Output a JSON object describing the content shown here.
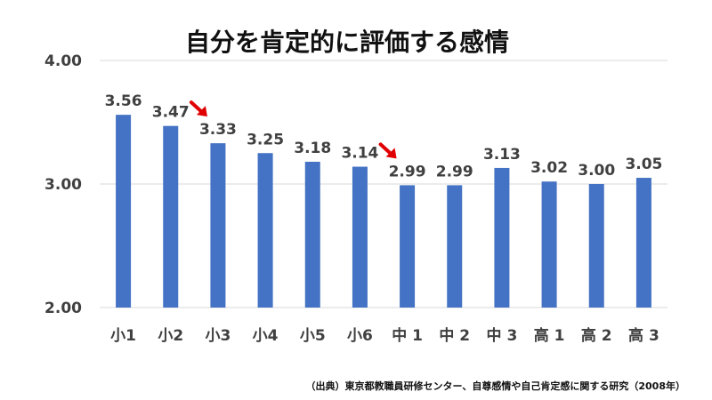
{
  "chart_data": {
    "type": "bar",
    "title": "自分を肯定的に評価する感情",
    "categories": [
      "小1",
      "小2",
      "小3",
      "小4",
      "小5",
      "小6",
      "中 1",
      "中 2",
      "中 3",
      "高 1",
      "高 2",
      "高 3"
    ],
    "values": [
      3.56,
      3.47,
      3.33,
      3.25,
      3.18,
      3.14,
      2.99,
      2.99,
      3.13,
      3.02,
      3.0,
      3.05
    ],
    "value_labels": [
      "3.56",
      "3.47",
      "3.33",
      "3.25",
      "3.18",
      "3.14",
      "2.99",
      "2.99",
      "3.13",
      "3.02",
      "3.00",
      "3.05"
    ],
    "ylim": [
      2.0,
      4.0
    ],
    "yticks": [
      2.0,
      3.0,
      4.0
    ],
    "ytick_labels": [
      "2.00",
      "3.00",
      "4.00"
    ],
    "grid": true,
    "legend": "none",
    "bar_color": "#4472c4",
    "annotations": [
      {
        "type": "arrow",
        "color": "#e00000",
        "points_to": "小3"
      },
      {
        "type": "arrow",
        "color": "#e00000",
        "points_to": "中 1"
      }
    ],
    "source_note": "（出典）東京都教職員研修センター、自尊感情や自己肯定感に関する研究（2008年）"
  }
}
